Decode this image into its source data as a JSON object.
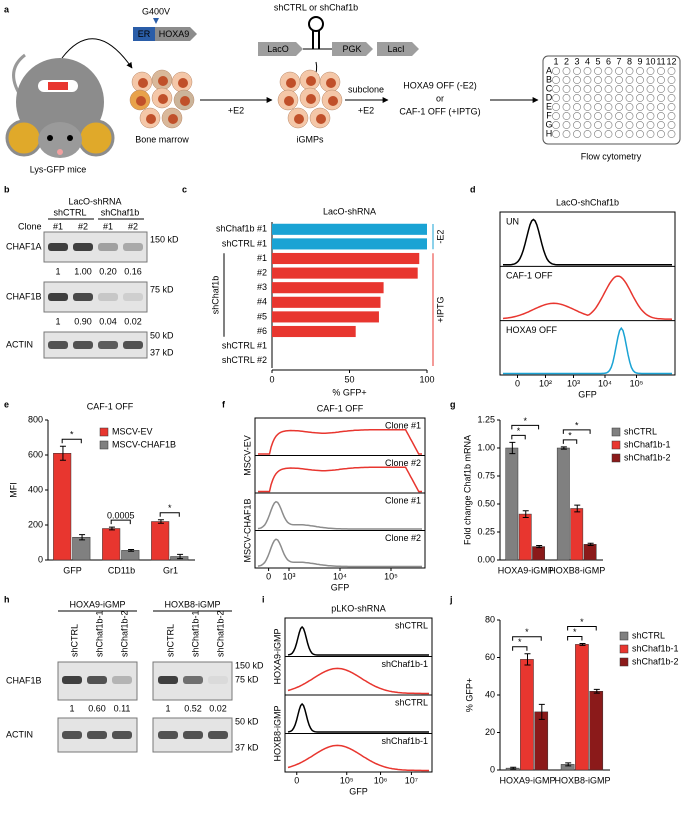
{
  "panel_labels": [
    "a",
    "b",
    "c",
    "d",
    "e",
    "f",
    "g",
    "h",
    "i",
    "j"
  ],
  "diagram": {
    "mutation": "G400V",
    "er": "ER",
    "hoxa9": "HOXA9",
    "construct_top": "shCTRL or shChaf1b",
    "laco": "LacO",
    "pgk": "PGK",
    "laci": "LacI",
    "mouse": "Lys-GFP mice",
    "bone_marrow": "Bone marrow",
    "step1": "+E2",
    "igmps": "iGMPs",
    "subclone": "subclone",
    "step2": "+E2",
    "hoxa9_off": "HOXA9 OFF (-E2)",
    "or": "or",
    "caf1_off": "CAF-1 OFF (+IPTG)",
    "plate_rows": [
      "A",
      "B",
      "C",
      "D",
      "E",
      "F",
      "G",
      "H"
    ],
    "plate_cols": [
      "1",
      "2",
      "3",
      "4",
      "5",
      "6",
      "7",
      "8",
      "9",
      "10",
      "11",
      "12"
    ],
    "flow": "Flow cytometry"
  },
  "blot_b": {
    "header": "LacO-shRNA",
    "groups": [
      "shCTRL",
      "shChaf1b"
    ],
    "clone_label": "Clone",
    "lanes": [
      "#1",
      "#2",
      "#1",
      "#2"
    ],
    "rows": [
      "CHAF1A",
      "CHAF1B",
      "ACTIN"
    ],
    "quant": [
      [
        "1",
        "1.00",
        "0.20",
        "0.16"
      ],
      [
        "1",
        "0.90",
        "0.04",
        "0.02"
      ]
    ],
    "markers": [
      "150 kD",
      "75 kD",
      "50 kD",
      "37 kD"
    ]
  },
  "flow_d": {
    "title": "LacO-shChaf1b",
    "title_color": "#000000",
    "rows": [
      "UN",
      "CAF-1 OFF",
      "HOXA9 OFF"
    ],
    "row_colors": [
      "#000000",
      "#e8362f",
      "#1aa3d4"
    ],
    "xticks": [
      "0",
      "10²",
      "10³",
      "10⁴",
      "10⁵"
    ],
    "xlabel": "GFP"
  },
  "flow_f": {
    "title": "CAF-1 OFF",
    "title_color": "#e8362f",
    "groups": [
      "MSCV-EV",
      "MSCV-CHAF1B"
    ],
    "rows": [
      "Clone #1",
      "Clone #2",
      "Clone #1",
      "Clone #2"
    ],
    "row_colors": [
      "#e8362f",
      "#e8362f",
      "#8c8c8c",
      "#8c8c8c"
    ],
    "xticks": [
      "0",
      "10³",
      "10⁴",
      "10⁵"
    ],
    "xlabel": "GFP"
  },
  "blot_h": {
    "groups": [
      "HOXA9-iGMP",
      "HOXB8-iGMP"
    ],
    "lanes": [
      "shCTRL",
      "shChaf1b-1",
      "shChaf1b-2",
      "shCTRL",
      "shChaf1b-1",
      "shChaf1b-2"
    ],
    "rows": [
      "CHAF1B",
      "ACTIN"
    ],
    "quant": [
      "1",
      "0.60",
      "0.11",
      "1",
      "0.52",
      "0.02"
    ],
    "markers": [
      "150 kD",
      "75 kD",
      "50 kD",
      "37 kD"
    ]
  },
  "flow_i": {
    "title": "pLKO-shRNA",
    "title_color": "#000000",
    "groups": [
      "HOXA9-iGMP",
      "HOXB8-iGMP"
    ],
    "rows": [
      "shCTRL",
      "shChaf1b-1",
      "shCTRL",
      "shChaf1b-1"
    ],
    "row_colors": [
      "#000000",
      "#e8362f",
      "#000000",
      "#e8362f"
    ],
    "xticks": [
      "0",
      "10⁵",
      "10⁶",
      "10⁷"
    ],
    "xlabel": "GFP"
  },
  "chart_data": [
    {
      "type": "bar",
      "horizontal": true,
      "title": "LacO-shRNA",
      "categories": [
        "shChaf1b #1",
        "shCTRL #1",
        "#1",
        "#2",
        "#3",
        "#4",
        "#5",
        "#6",
        "shCTRL #1",
        "shCTRL #2"
      ],
      "values": [
        100,
        100,
        95,
        94,
        72,
        70,
        69,
        54,
        0,
        0
      ],
      "colors": [
        "#1aa3d4",
        "#1aa3d4",
        "#e8362f",
        "#e8362f",
        "#e8362f",
        "#e8362f",
        "#e8362f",
        "#e8362f",
        "#e8362f",
        "#e8362f"
      ],
      "xlim": [
        0,
        100
      ],
      "xticks": [
        0,
        50,
        100
      ],
      "xlabel": "% GFP+",
      "brackets": [
        {
          "label": "-E2",
          "color": "#1aa3d4"
        },
        {
          "label": "+IPTG",
          "color": "#e8362f"
        },
        {
          "label": "shChaf1b",
          "color": "#000000"
        }
      ]
    },
    {
      "type": "bar",
      "title": "CAF-1 OFF",
      "title_color": "#e8362f",
      "ylabel": "MFI",
      "categories": [
        "GFP",
        "CD11b",
        "Gr1"
      ],
      "series": [
        {
          "name": "MSCV-EV",
          "color": "#e8362f",
          "values": [
            610,
            180,
            220
          ],
          "errors": [
            40,
            8,
            10
          ]
        },
        {
          "name": "MSCV-CHAF1B",
          "color": "#808080",
          "values": [
            130,
            55,
            20
          ],
          "errors": [
            15,
            5,
            12
          ]
        }
      ],
      "ylim": [
        0,
        800
      ],
      "yticks": [
        0,
        200,
        400,
        600,
        800
      ],
      "annotations": [
        "*",
        "0.0005",
        "*"
      ]
    },
    {
      "type": "bar",
      "ylabel": "Fold change Chaf1b mRNA",
      "categories": [
        "HOXA9-iGMP",
        "HOXB8-iGMP"
      ],
      "series": [
        {
          "name": "shCTRL",
          "color": "#808080",
          "values": [
            1.0,
            1.0
          ],
          "errors": [
            0.05,
            0.01
          ]
        },
        {
          "name": "shChaf1b-1",
          "color": "#e8362f",
          "values": [
            0.41,
            0.46
          ],
          "errors": [
            0.03,
            0.03
          ]
        },
        {
          "name": "shChaf1b-2",
          "color": "#8b1a1a",
          "values": [
            0.12,
            0.14
          ],
          "errors": [
            0.01,
            0.01
          ]
        }
      ],
      "ylim": [
        0,
        1.25
      ],
      "yticks": [
        {
          "value": 0,
          "label": "0.00"
        },
        {
          "value": 0.25,
          "label": "0.25"
        },
        {
          "value": 0.5,
          "label": "0.50"
        },
        {
          "value": 0.75,
          "label": "0.75"
        },
        {
          "value": 1,
          "label": "1.00"
        },
        {
          "value": 1.25,
          "label": "1.25"
        }
      ],
      "annotations": [
        "*",
        "*",
        "*",
        "*"
      ]
    },
    {
      "type": "bar",
      "ylabel": "% GFP+",
      "categories": [
        "HOXA9-iGMP",
        "HOXB8-iGMP"
      ],
      "series": [
        {
          "name": "shCTRL",
          "color": "#808080",
          "values": [
            1,
            3
          ],
          "errors": [
            0.5,
            0.8
          ]
        },
        {
          "name": "shChaf1b-1",
          "color": "#e8362f",
          "values": [
            59,
            67
          ],
          "errors": [
            3,
            0.5
          ]
        },
        {
          "name": "shChaf1b-2",
          "color": "#8b1a1a",
          "values": [
            31,
            42
          ],
          "errors": [
            4,
            1
          ]
        }
      ],
      "ylim": [
        0,
        80
      ],
      "yticks": [
        0,
        20,
        40,
        60,
        80
      ],
      "annotations": [
        "*",
        "*",
        "*",
        "*"
      ]
    }
  ]
}
